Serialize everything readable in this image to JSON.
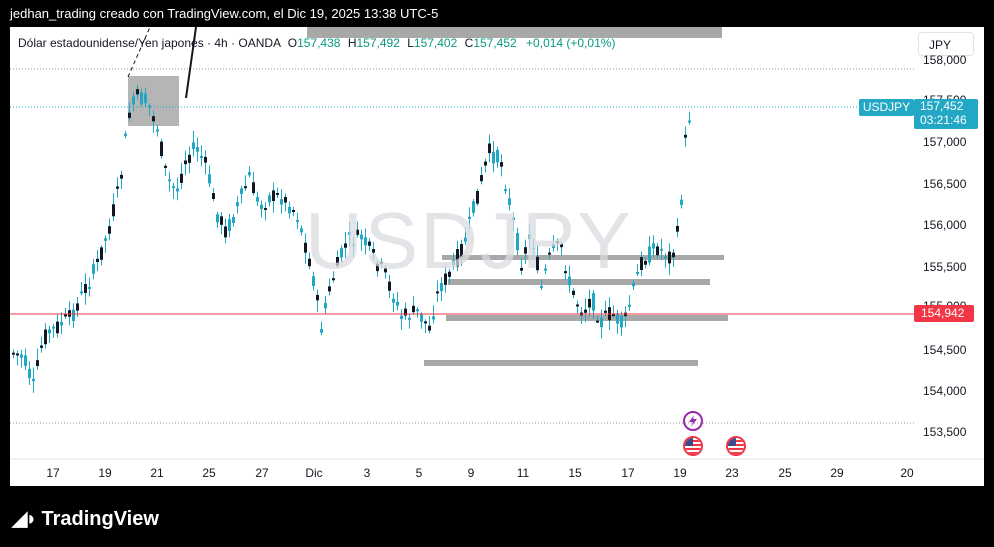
{
  "caption": "jedhan_trading creado con TradingView.com, el Dic 19, 2025 13:38 UTC-5",
  "legend": {
    "title": "Dólar estadounidense/Yen japonés · 4h · OANDA",
    "o_label": "O",
    "o_value": "157,438",
    "h_label": "H",
    "h_value": "157,492",
    "l_label": "L",
    "l_value": "157,402",
    "c_label": "C",
    "c_value": "157,452",
    "change": "+0,014 (+0,01%)"
  },
  "currency_button": "JPY",
  "watermark": "USDJPY",
  "price_axis": {
    "labels": [
      "158,000",
      "157,500",
      "157,000",
      "156,500",
      "156,000",
      "155,500",
      "155,000",
      "154,500",
      "154,000",
      "153,500"
    ],
    "symbol_badge": "USDJPY",
    "last_price": "157,452",
    "countdown": "03:21:46",
    "red_line_price": "154,942"
  },
  "time_axis": {
    "labels": [
      "17",
      "19",
      "21",
      "25",
      "27",
      "Dic",
      "3",
      "5",
      "9",
      "11",
      "15",
      "17",
      "19",
      "23",
      "25",
      "29",
      "20"
    ]
  },
  "colors": {
    "candle": "#22a8c4",
    "last_price": "#22a8c4",
    "red_line": "#f23645",
    "zones": "#a8a8a8",
    "event_lightning": "#9c27b0",
    "event_flag": "#f23645"
  },
  "icons": {
    "events": [
      "lightning-icon",
      "us-flag-icon",
      "us-flag-icon"
    ],
    "logo": "tradingview-logo-icon"
  },
  "logo_text": "TradingView"
}
